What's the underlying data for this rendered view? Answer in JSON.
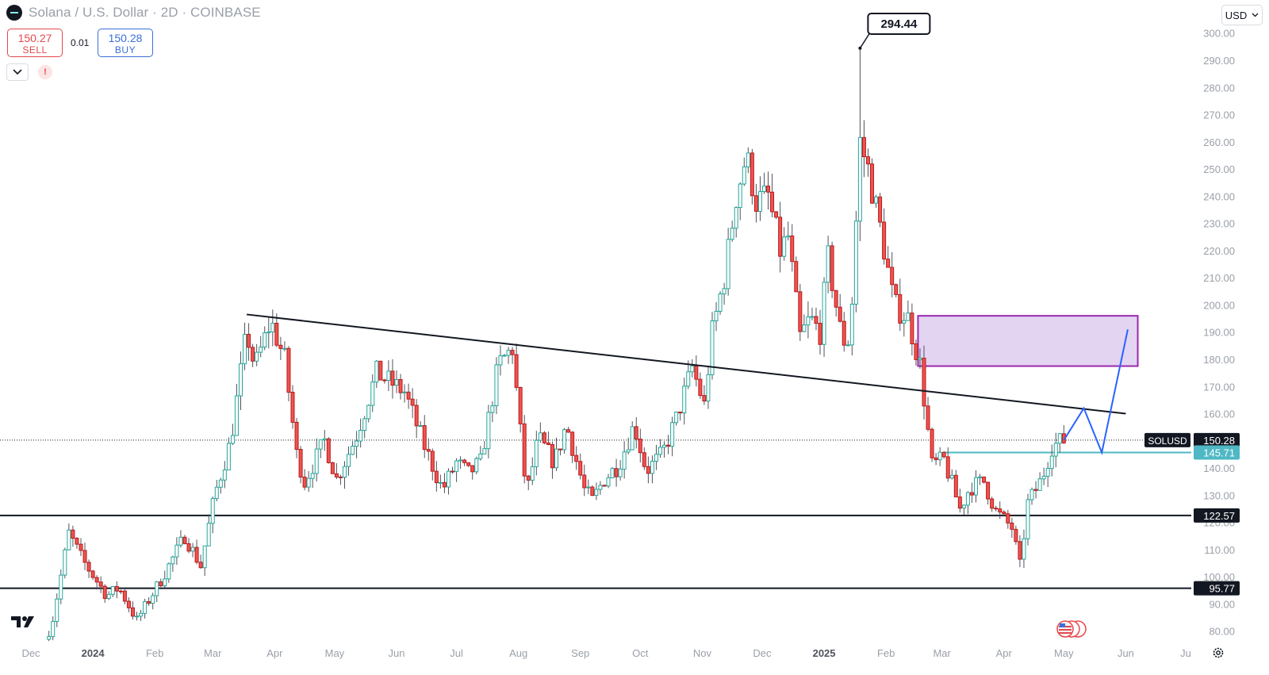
{
  "header": {
    "symbol_title": "Solana / U.S. Dollar · 2D · COINBASE",
    "sell_price": "150.27",
    "sell_label": "SELL",
    "spread": "0.01",
    "buy_price": "150.28",
    "buy_label": "BUY",
    "currency": "USD",
    "alert_glyph": "!"
  },
  "icons": {
    "coin": "solana-logo-icon",
    "dropdown": "chevron-down-icon",
    "alert": "alert-icon",
    "brand": "tradingview-logo-icon",
    "flag": "us-flag-stack-icon",
    "settings": "gear-icon"
  },
  "colors": {
    "up": "#26a69a",
    "down": "#ef5350",
    "up_body": "#ffffff",
    "wick": "#50535e",
    "trendline": "#131722",
    "projection": "#2962ff",
    "zone_fill": "#e3d4f1",
    "zone_border": "#9c27b0",
    "support_line": "#4fb8c4"
  },
  "chart_data": {
    "type": "candlestick",
    "title": "Solana / U.S. Dollar · 2D · COINBASE",
    "ylim": [
      77,
      304
    ],
    "y_ticks": [
      "300.00",
      "290.00",
      "280.00",
      "270.00",
      "260.00",
      "250.00",
      "240.00",
      "230.00",
      "220.00",
      "210.00",
      "200.00",
      "190.00",
      "180.00",
      "170.00",
      "160.00",
      "150.00",
      "140.00",
      "130.00",
      "120.00",
      "110.00",
      "100.00",
      "90.00",
      "80.00"
    ],
    "x_ticks": [
      "Dec",
      "2024",
      "Feb",
      "Mar",
      "Apr",
      "May",
      "Jun",
      "Jul",
      "Aug",
      "Sep",
      "Oct",
      "Nov",
      "Dec",
      "2025",
      "Feb",
      "Mar",
      "Apr",
      "May",
      "Jun",
      "Ju"
    ],
    "x_tick_dates": [
      "2023-12-01",
      "2024-01-01",
      "2024-02-01",
      "2024-03-01",
      "2024-04-01",
      "2024-05-01",
      "2024-06-01",
      "2024-07-01",
      "2024-08-01",
      "2024-09-01",
      "2024-10-01",
      "2024-11-01",
      "2024-12-01",
      "2025-01-01",
      "2025-02-01",
      "2025-03-01",
      "2025-04-01",
      "2025-05-01",
      "2025-06-01",
      "2025-07-01"
    ],
    "anchors": [
      {
        "date": "2023-12-10",
        "close": 77
      },
      {
        "date": "2023-12-20",
        "close": 116
      },
      {
        "date": "2023-12-27",
        "close": 106
      },
      {
        "date": "2024-01-08",
        "close": 93
      },
      {
        "date": "2024-01-14",
        "close": 96
      },
      {
        "date": "2024-01-23",
        "close": 84
      },
      {
        "date": "2024-02-05",
        "close": 100
      },
      {
        "date": "2024-02-16",
        "close": 115
      },
      {
        "date": "2024-02-24",
        "close": 104
      },
      {
        "date": "2024-03-02",
        "close": 130
      },
      {
        "date": "2024-03-10",
        "close": 150
      },
      {
        "date": "2024-03-18",
        "close": 190
      },
      {
        "date": "2024-03-22",
        "close": 177
      },
      {
        "date": "2024-03-30",
        "close": 194
      },
      {
        "date": "2024-04-06",
        "close": 180
      },
      {
        "date": "2024-04-12",
        "close": 145
      },
      {
        "date": "2024-04-16",
        "close": 135
      },
      {
        "date": "2024-04-26",
        "close": 150
      },
      {
        "date": "2024-05-02",
        "close": 136
      },
      {
        "date": "2024-05-12",
        "close": 152
      },
      {
        "date": "2024-05-22",
        "close": 175
      },
      {
        "date": "2024-06-05",
        "close": 168
      },
      {
        "date": "2024-06-15",
        "close": 148
      },
      {
        "date": "2024-06-24",
        "close": 132
      },
      {
        "date": "2024-07-01",
        "close": 142
      },
      {
        "date": "2024-07-07",
        "close": 138
      },
      {
        "date": "2024-07-13",
        "close": 142
      },
      {
        "date": "2024-07-22",
        "close": 178
      },
      {
        "date": "2024-07-29",
        "close": 184
      },
      {
        "date": "2024-08-05",
        "close": 130
      },
      {
        "date": "2024-08-11",
        "close": 151
      },
      {
        "date": "2024-08-19",
        "close": 142
      },
      {
        "date": "2024-08-25",
        "close": 156
      },
      {
        "date": "2024-09-03",
        "close": 132
      },
      {
        "date": "2024-09-07",
        "close": 128
      },
      {
        "date": "2024-09-13",
        "close": 136
      },
      {
        "date": "2024-09-20",
        "close": 141
      },
      {
        "date": "2024-09-28",
        "close": 156
      },
      {
        "date": "2024-10-04",
        "close": 139
      },
      {
        "date": "2024-10-12",
        "close": 145
      },
      {
        "date": "2024-10-19",
        "close": 158
      },
      {
        "date": "2024-10-27",
        "close": 177
      },
      {
        "date": "2024-11-02",
        "close": 163
      },
      {
        "date": "2024-11-06",
        "close": 190
      },
      {
        "date": "2024-11-12",
        "close": 210
      },
      {
        "date": "2024-11-18",
        "close": 240
      },
      {
        "date": "2024-11-23",
        "close": 255
      },
      {
        "date": "2024-11-28",
        "close": 238
      },
      {
        "date": "2024-12-04",
        "close": 240
      },
      {
        "date": "2024-12-10",
        "close": 220
      },
      {
        "date": "2024-12-14",
        "close": 225
      },
      {
        "date": "2024-12-20",
        "close": 188
      },
      {
        "date": "2024-12-25",
        "close": 195
      },
      {
        "date": "2024-12-30",
        "close": 190
      },
      {
        "date": "2025-01-03",
        "close": 217
      },
      {
        "date": "2025-01-10",
        "close": 187
      },
      {
        "date": "2025-01-14",
        "close": 187
      },
      {
        "date": "2025-01-19",
        "close": 260
      },
      {
        "date": "2025-01-23",
        "close": 250
      },
      {
        "date": "2025-01-30",
        "close": 225
      },
      {
        "date": "2025-02-05",
        "close": 200
      },
      {
        "date": "2025-02-12",
        "close": 195
      },
      {
        "date": "2025-02-18",
        "close": 178
      },
      {
        "date": "2025-02-24",
        "close": 141
      },
      {
        "date": "2025-03-02",
        "close": 143
      },
      {
        "date": "2025-03-10",
        "close": 125
      },
      {
        "date": "2025-03-15",
        "close": 133
      },
      {
        "date": "2025-03-22",
        "close": 135
      },
      {
        "date": "2025-03-28",
        "close": 124
      },
      {
        "date": "2025-04-05",
        "close": 118
      },
      {
        "date": "2025-04-09",
        "close": 104
      },
      {
        "date": "2025-04-13",
        "close": 127
      },
      {
        "date": "2025-04-20",
        "close": 136
      },
      {
        "date": "2025-04-25",
        "close": 148
      },
      {
        "date": "2025-05-01",
        "close": 150.28
      }
    ],
    "price_peak": {
      "label": "294.44",
      "date": "2025-01-19",
      "value": 294.44
    },
    "horizontal_levels": [
      {
        "label": "122.57",
        "value": 122.57
      },
      {
        "label": "95.77",
        "value": 95.77
      }
    ],
    "short_level": {
      "label": "145.71",
      "value": 145.71,
      "from": "2025-03-02"
    },
    "current_price": {
      "symbol": "SOLUSD",
      "label": "150.28",
      "value": 150.28
    },
    "trendline": {
      "start": {
        "date": "2024-03-18",
        "value": 196.5
      },
      "end": {
        "date": "2025-06-01",
        "value": 160
      }
    },
    "zone": {
      "from": "2025-02-17",
      "to": "2025-06-07",
      "low": 177.5,
      "high": 196
    },
    "projection_path": [
      {
        "date": "2025-05-01",
        "value": 150.28
      },
      {
        "date": "2025-05-11",
        "value": 162
      },
      {
        "date": "2025-05-20",
        "value": 145.71
      },
      {
        "date": "2025-06-02",
        "value": 191
      }
    ]
  }
}
